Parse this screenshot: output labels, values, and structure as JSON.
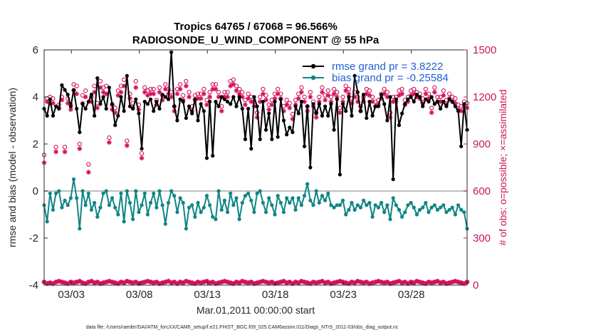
{
  "chart_data": {
    "type": "line",
    "title_line1": "Tropics 64765 / 67068 = 96.566%",
    "title_line2": "RADIOSONDE_U_WIND_COMPONENT @ 55 hPa",
    "xlabel": "Mar.01,2011 00:00:00 start",
    "ylabel_left": "rmse and bias (model - observation)",
    "ylabel_right": "# of obs: o=possible; ×=assimilated",
    "xlim": [
      1,
      32.1
    ],
    "ylim_left": [
      -4,
      6
    ],
    "ylim_right": [
      0,
      1500
    ],
    "x_ticks": [
      {
        "pos": 3,
        "label": "03/03"
      },
      {
        "pos": 8,
        "label": "03/08"
      },
      {
        "pos": 13,
        "label": "03/13"
      },
      {
        "pos": 18,
        "label": "03/18"
      },
      {
        "pos": 23,
        "label": "03/23"
      },
      {
        "pos": 28,
        "label": "03/28"
      }
    ],
    "y_ticks_left": [
      -4,
      -2,
      0,
      2,
      4,
      6
    ],
    "y_tick_labels_left": [
      "-4",
      "-2",
      "0",
      "2",
      "4",
      "6"
    ],
    "y_ticks_right": [
      0,
      300,
      600,
      900,
      1200,
      1500
    ],
    "y_tick_labels_right": [
      "0",
      "300",
      "600",
      "900",
      "1200",
      "1500"
    ],
    "legend_position": "top-right",
    "legend": [
      "rmse grand pr = 3.8222",
      "bias grand pr = -0.25584"
    ],
    "footnote": "data file: /Users/raeder/DAI/ATM_forcXX/CAM6_setup/f.e21.FHIST_BGC.f09_025.CAM6assim.011/Diags_NTrS_2011-03/obs_diag_output.nc",
    "colors": {
      "rmse": "#000000",
      "bias": "#0f8585",
      "obs": "#d1105a",
      "zero_line": "#bfbfbf",
      "legend_text": "#1f5fd6"
    },
    "series": [
      {
        "name": "rmse",
        "axis": "left",
        "values": [
          3.5,
          3.2,
          3.9,
          3.2,
          3.6,
          3.5,
          4.5,
          4.3,
          4.1,
          3.6,
          4.3,
          3.5,
          2.5,
          3.7,
          3.5,
          3.8,
          4.1,
          3.2,
          4.8,
          3.7,
          4.0,
          3.5,
          4.4,
          3.7,
          2.8,
          3.2,
          4.0,
          3.4,
          4.9,
          3.6,
          3.5,
          3.9,
          3.3,
          1.8,
          3.8,
          3.7,
          3.9,
          3.4,
          3.8,
          3.5,
          4.1,
          4.0,
          3.9,
          5.9,
          3.6,
          3.0,
          3.9,
          3.8,
          3.1,
          3.6,
          3.3,
          3.9,
          3.0,
          3.7,
          3.4,
          1.4,
          3.8,
          1.5,
          3.8,
          3.6,
          4.0,
          3.9,
          3.8,
          3.7,
          4.0,
          3.6,
          4.0,
          3.5,
          2.2,
          3.5,
          1.8,
          4.0,
          3.6,
          2.2,
          3.8,
          2.6,
          3.3,
          2.2,
          3.8,
          2.3,
          3.9,
          3.0,
          2.4,
          2.7,
          2.5,
          3.6,
          3.3,
          3.8,
          1.9,
          3.6,
          1.0,
          3.7,
          3.3,
          3.7,
          3.2,
          3.6,
          3.2,
          3.7,
          2.6,
          3.9,
          0.7,
          3.7,
          3.4,
          4.0,
          3.2,
          4.9,
          4.2,
          3.4,
          4.1,
          3.1,
          3.8,
          3.2,
          3.6,
          3.6,
          4.1,
          3.7,
          3.0,
          4.0,
          0.5,
          3.9,
          2.8,
          3.3,
          3.7,
          3.9,
          4.0,
          3.8,
          4.1,
          4.0,
          3.6,
          3.9,
          3.8,
          4.0,
          3.7,
          3.8,
          3.5,
          3.8,
          3.6,
          3.9,
          3.8,
          3.6,
          3.4,
          1.9,
          3.7,
          2.6
        ]
      },
      {
        "name": "bias",
        "axis": "left",
        "values": [
          -0.6,
          -1.3,
          -0.1,
          -0.8,
          -0.1,
          0.0,
          -0.7,
          -0.4,
          -0.6,
          -0.3,
          0.5,
          -0.3,
          -1.6,
          0.0,
          -0.6,
          -0.1,
          -0.8,
          -0.5,
          -1.1,
          -0.7,
          -0.1,
          0.0,
          -0.6,
          -0.3,
          -0.7,
          -1.0,
          -0.1,
          -1.3,
          0.0,
          -0.5,
          -1.2,
          0.0,
          -0.9,
          -0.6,
          -0.1,
          -1.0,
          -0.5,
          -0.1,
          -0.7,
          0.0,
          -0.6,
          -1.4,
          -0.5,
          0.0,
          -0.2,
          -0.9,
          -0.3,
          -0.5,
          -1.6,
          -0.7,
          -0.6,
          -1.1,
          -0.5,
          -0.9,
          -0.7,
          -0.2,
          -0.6,
          -1.1,
          -1.2,
          0.0,
          -0.8,
          -0.4,
          -0.9,
          -0.1,
          -0.6,
          -0.3,
          -1.2,
          -0.5,
          -0.2,
          -0.1,
          -0.4,
          -0.9,
          -0.1,
          0.0,
          -0.5,
          -0.9,
          -0.3,
          -0.6,
          -1.0,
          -0.2,
          -0.5,
          -0.9,
          -0.3,
          -0.5,
          -0.3,
          -0.8,
          -0.3,
          -0.6,
          -0.2,
          0.3,
          -0.4,
          -0.6,
          0.0,
          -0.5,
          -0.2,
          -0.4,
          -0.1,
          -0.6,
          -0.7,
          -0.6,
          -0.6,
          -0.4,
          -1.0,
          -0.8,
          -0.5,
          -0.8,
          -0.6,
          -0.7,
          -0.4,
          -0.6,
          -0.5,
          -1.1,
          -0.6,
          -0.7,
          -0.5,
          -0.9,
          -0.6,
          -1.2,
          -0.3,
          -0.6,
          -0.8,
          -1.1,
          -0.9,
          -0.6,
          -0.5,
          -0.7,
          -1.0,
          -0.8,
          -0.7,
          -0.5,
          -0.9,
          -0.7,
          -0.6,
          -0.8,
          -0.7,
          -0.6,
          -0.9,
          -0.8,
          -0.7,
          -1.0,
          -0.6,
          -0.8,
          -0.9,
          -1.6
        ]
      },
      {
        "name": "obs possible",
        "axis": "right",
        "values": [
          830,
          1190,
          1200,
          1190,
          880,
          1150,
          1200,
          880,
          1190,
          1150,
          1280,
          1270,
          900,
          1210,
          1240,
          770,
          1200,
          1270,
          1160,
          1300,
          1260,
          1270,
          940,
          1150,
          1130,
          1240,
          1270,
          1310,
          920,
          1220,
          1160,
          1300,
          1150,
          840,
          1260,
          1240,
          1250,
          1250,
          1180,
          1260,
          1210,
          1280,
          1250,
          1230,
          1140,
          1250,
          1280,
          1210,
          1300,
          1230,
          1140,
          1210,
          1220,
          1220,
          1250,
          1180,
          1230,
          1280,
          1280,
          1230,
          1140,
          1230,
          1230,
          1300,
          1310,
          1270,
          1250,
          1230,
          1180,
          1220,
          1200,
          1170,
          1100,
          1200,
          1250,
          1210,
          1150,
          1180,
          1220,
          1250,
          1220,
          1140,
          1180,
          1160,
          1090,
          1180,
          1220,
          1260,
          1200,
          1140,
          1230,
          1170,
          1100,
          1200,
          1260,
          1210,
          1240,
          1200,
          1250,
          1230,
          1130,
          1200,
          1270,
          1250,
          1190,
          1230,
          1200,
          1140,
          1200,
          1250,
          1240,
          1200,
          1170,
          1180,
          1220,
          1250,
          1230,
          1100,
          1200,
          1200,
          1240,
          1250,
          1180,
          1200,
          1240,
          1250,
          1230,
          1220,
          1190,
          1250,
          1220,
          1130,
          1260,
          1200,
          1200,
          1240,
          1180,
          1220,
          1200,
          1190,
          1150,
          1140,
          1170,
          1160
        ]
      },
      {
        "name": "obs assimilated",
        "axis": "right",
        "values": [
          780,
          1170,
          1160,
          1160,
          850,
          1130,
          1180,
          850,
          1160,
          1120,
          1240,
          1220,
          870,
          1160,
          1200,
          720,
          1170,
          1230,
          1130,
          1260,
          1230,
          1220,
          910,
          1120,
          1100,
          1210,
          1230,
          1270,
          890,
          1190,
          1130,
          1260,
          1120,
          810,
          1230,
          1210,
          1220,
          1220,
          1150,
          1230,
          1180,
          1250,
          1220,
          1200,
          1110,
          1220,
          1250,
          1180,
          1270,
          1200,
          1110,
          1180,
          1190,
          1190,
          1220,
          1150,
          1200,
          1250,
          1250,
          1200,
          1110,
          1200,
          1200,
          1270,
          1280,
          1240,
          1220,
          1200,
          1150,
          1190,
          1170,
          1140,
          1070,
          1170,
          1220,
          1180,
          1120,
          1150,
          1190,
          1220,
          1190,
          1110,
          1150,
          1130,
          1060,
          1150,
          1190,
          1230,
          1170,
          1110,
          1200,
          1140,
          1070,
          1170,
          1230,
          1180,
          1210,
          1170,
          1220,
          1200,
          1100,
          1170,
          1240,
          1220,
          1160,
          1200,
          1170,
          1110,
          1170,
          1220,
          1210,
          1170,
          1140,
          1150,
          1190,
          1220,
          1200,
          1070,
          1170,
          1170,
          1210,
          1220,
          1150,
          1170,
          1210,
          1220,
          1200,
          1190,
          1160,
          1220,
          1190,
          1100,
          1230,
          1170,
          1170,
          1210,
          1150,
          1190,
          1170,
          1160,
          1120,
          1110,
          1140,
          1130
        ]
      },
      {
        "name": "obs possible (low, level above)",
        "axis": "right",
        "values": [
          20,
          10,
          15,
          10,
          20,
          25,
          20,
          15,
          10,
          20,
          15,
          20,
          25,
          15,
          10,
          20,
          25,
          15,
          20,
          10,
          15,
          20,
          25,
          20,
          15,
          10,
          20,
          15,
          25,
          20,
          15,
          20,
          10,
          15,
          20,
          25,
          20,
          15,
          20,
          10,
          15,
          20,
          25,
          15,
          20,
          10,
          20,
          15,
          25,
          20,
          15,
          10,
          20,
          15,
          20,
          25,
          15,
          20,
          10,
          15,
          20,
          25,
          20,
          15,
          10,
          20,
          15,
          25,
          20,
          15,
          20,
          10,
          15,
          20,
          25,
          20,
          15,
          20,
          10,
          15,
          20,
          25,
          15,
          20,
          10,
          20,
          15,
          25,
          20,
          15,
          10,
          20,
          15,
          20,
          25,
          15,
          20,
          10,
          15,
          20,
          25,
          20,
          15,
          10,
          20,
          15,
          25,
          20,
          15,
          20,
          10,
          15,
          20,
          25,
          20,
          15,
          20,
          10,
          15,
          20,
          25,
          15,
          20,
          10,
          20,
          15,
          25,
          20,
          15,
          10,
          20,
          15,
          20,
          25,
          15,
          20,
          10,
          15,
          20,
          25,
          20,
          15,
          10,
          20
        ]
      }
    ]
  }
}
